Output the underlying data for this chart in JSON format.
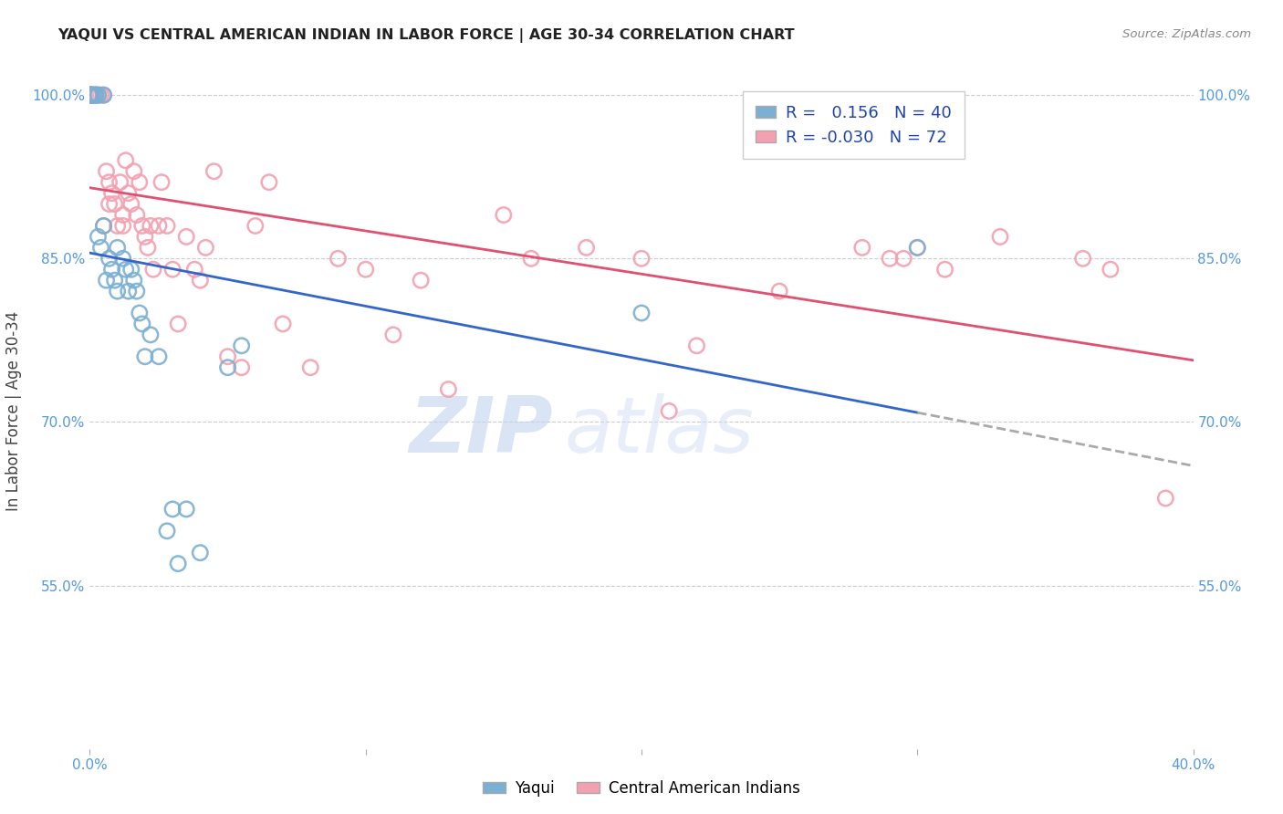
{
  "title": "YAQUI VS CENTRAL AMERICAN INDIAN IN LABOR FORCE | AGE 30-34 CORRELATION CHART",
  "source": "Source: ZipAtlas.com",
  "ylabel": "In Labor Force | Age 30-34",
  "xlim": [
    0.0,
    0.4
  ],
  "ylim": [
    0.4,
    1.02
  ],
  "xticks": [
    0.0,
    0.1,
    0.2,
    0.3,
    0.4
  ],
  "xticklabels": [
    "0.0%",
    "",
    "",
    "",
    "40.0%"
  ],
  "yticks": [
    0.55,
    0.7,
    0.85,
    1.0
  ],
  "yticklabels": [
    "55.0%",
    "70.0%",
    "85.0%",
    "100.0%"
  ],
  "yaqui_color": "#7BAFD4",
  "central_color": "#F4A0B0",
  "yaqui_R": 0.156,
  "yaqui_N": 40,
  "central_R": -0.03,
  "central_N": 72,
  "watermark_zip": "ZIP",
  "watermark_atlas": "atlas",
  "legend_title_yaqui": "Yaqui",
  "legend_title_central": "Central American Indians",
  "yaqui_x": [
    0.0,
    0.0,
    0.0,
    0.0,
    0.0,
    0.001,
    0.001,
    0.002,
    0.002,
    0.003,
    0.003,
    0.004,
    0.005,
    0.005,
    0.006,
    0.007,
    0.008,
    0.009,
    0.01,
    0.01,
    0.012,
    0.013,
    0.014,
    0.015,
    0.016,
    0.017,
    0.018,
    0.019,
    0.02,
    0.022,
    0.025,
    0.028,
    0.03,
    0.032,
    0.035,
    0.04,
    0.05,
    0.055,
    0.2,
    0.3
  ],
  "yaqui_y": [
    1.0,
    1.0,
    1.0,
    1.0,
    1.0,
    1.0,
    1.0,
    1.0,
    1.0,
    1.0,
    0.87,
    0.86,
    1.0,
    0.88,
    0.83,
    0.85,
    0.84,
    0.83,
    0.86,
    0.82,
    0.85,
    0.84,
    0.82,
    0.84,
    0.83,
    0.82,
    0.8,
    0.79,
    0.76,
    0.78,
    0.76,
    0.6,
    0.62,
    0.57,
    0.62,
    0.58,
    0.75,
    0.77,
    0.8,
    0.86
  ],
  "central_x": [
    0.0,
    0.0,
    0.0,
    0.0,
    0.0,
    0.001,
    0.001,
    0.001,
    0.002,
    0.002,
    0.003,
    0.003,
    0.004,
    0.005,
    0.005,
    0.006,
    0.007,
    0.007,
    0.008,
    0.009,
    0.01,
    0.011,
    0.012,
    0.012,
    0.013,
    0.014,
    0.015,
    0.016,
    0.017,
    0.018,
    0.019,
    0.02,
    0.021,
    0.022,
    0.023,
    0.025,
    0.026,
    0.028,
    0.03,
    0.032,
    0.035,
    0.038,
    0.04,
    0.042,
    0.045,
    0.05,
    0.055,
    0.06,
    0.065,
    0.07,
    0.08,
    0.09,
    0.1,
    0.11,
    0.12,
    0.13,
    0.15,
    0.16,
    0.18,
    0.2,
    0.21,
    0.22,
    0.25,
    0.28,
    0.29,
    0.295,
    0.3,
    0.31,
    0.33,
    0.36,
    0.37,
    0.39
  ],
  "central_y": [
    1.0,
    1.0,
    1.0,
    1.0,
    1.0,
    1.0,
    1.0,
    1.0,
    1.0,
    1.0,
    1.0,
    1.0,
    1.0,
    1.0,
    0.88,
    0.93,
    0.92,
    0.9,
    0.91,
    0.9,
    0.88,
    0.92,
    0.89,
    0.88,
    0.94,
    0.91,
    0.9,
    0.93,
    0.89,
    0.92,
    0.88,
    0.87,
    0.86,
    0.88,
    0.84,
    0.88,
    0.92,
    0.88,
    0.84,
    0.79,
    0.87,
    0.84,
    0.83,
    0.86,
    0.93,
    0.76,
    0.75,
    0.88,
    0.92,
    0.79,
    0.75,
    0.85,
    0.84,
    0.78,
    0.83,
    0.73,
    0.89,
    0.85,
    0.86,
    0.85,
    0.71,
    0.77,
    0.82,
    0.86,
    0.85,
    0.85,
    0.86,
    0.84,
    0.87,
    0.85,
    0.84,
    0.63
  ]
}
